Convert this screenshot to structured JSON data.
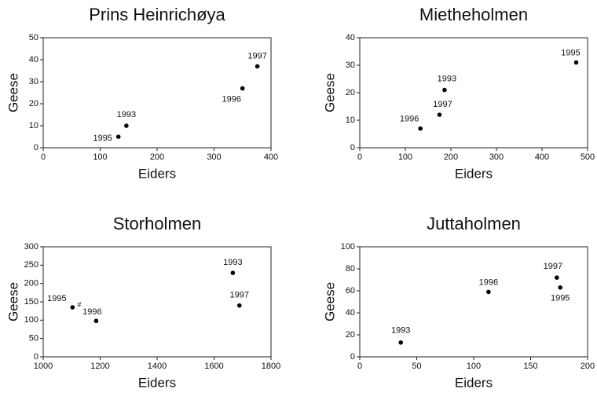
{
  "chart_data": [
    {
      "type": "scatter",
      "title": "Prins Heinrichøya",
      "x_label": "Eiders",
      "y_label": "Geese",
      "x": [
        132,
        146,
        350,
        376
      ],
      "values": [
        5,
        10,
        27,
        37
      ],
      "labels": [
        "1995",
        "1993",
        "1996",
        "1997"
      ],
      "xlim": [
        0,
        400
      ],
      "ylim": [
        0,
        50
      ],
      "xticks": [
        0,
        100,
        200,
        300,
        400
      ],
      "yticks": [
        0,
        10,
        20,
        30,
        40,
        50
      ],
      "color": "#000000"
    },
    {
      "type": "scatter",
      "title": "Mietheholmen",
      "x_label": "Eiders",
      "y_label": "Geese",
      "x": [
        133,
        186,
        175,
        475
      ],
      "values": [
        7,
        21,
        12,
        31
      ],
      "labels": [
        "1996",
        "1993",
        "1997",
        "1995"
      ],
      "xlim": [
        0,
        500
      ],
      "ylim": [
        0,
        40
      ],
      "xticks": [
        0,
        100,
        200,
        300,
        400,
        500
      ],
      "yticks": [
        0,
        10,
        20,
        30,
        40
      ],
      "color": "#000000"
    },
    {
      "type": "scatter",
      "title": "Storholmen",
      "x_label": "Eiders",
      "y_label": "Geese",
      "x": [
        1103,
        1186,
        1666,
        1689
      ],
      "values": [
        135,
        98,
        229,
        140
      ],
      "labels": [
        "1995",
        "1996",
        "1993",
        "1997"
      ],
      "point_notes": [
        "#",
        null,
        null,
        null
      ],
      "xlim": [
        1000,
        1800
      ],
      "ylim": [
        0,
        300
      ],
      "xticks": [
        1000,
        1200,
        1400,
        1600,
        1800
      ],
      "yticks": [
        0,
        50,
        100,
        150,
        200,
        250,
        300
      ],
      "color": "#000000"
    },
    {
      "type": "scatter",
      "title": "Juttaholmen",
      "x_label": "Eiders",
      "y_label": "Geese",
      "x": [
        36,
        113,
        173,
        176
      ],
      "values": [
        13,
        59,
        72,
        63
      ],
      "labels": [
        "1993",
        "1996",
        "1997",
        "1995"
      ],
      "xlim": [
        0,
        200
      ],
      "ylim": [
        0,
        100
      ],
      "xticks": [
        0,
        50,
        100,
        150,
        200
      ],
      "yticks": [
        0,
        20,
        40,
        60,
        80,
        100
      ],
      "color": "#000000"
    }
  ]
}
